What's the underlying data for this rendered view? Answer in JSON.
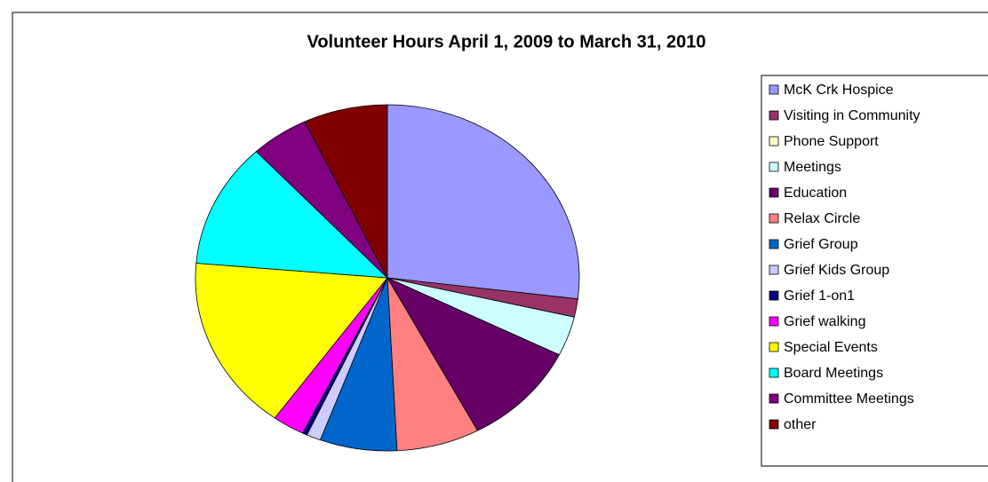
{
  "chart_data": {
    "type": "pie",
    "title": "Volunteer Hours April 1, 2009 to March 31, 2010",
    "categories": [
      "McK Crk Hospice",
      "Visiting in Community",
      "Phone Support",
      "Meetings",
      "Education",
      "Relax Circle",
      "Grief Group",
      "Grief Kids Group",
      "Grief 1-on1",
      "Grief walking",
      "Special  Events",
      "Board Meetings",
      "Committee Meetings",
      "other"
    ],
    "values": [
      27,
      1.7,
      0,
      3.7,
      9.9,
      7,
      6.5,
      1.2,
      0.4,
      2.7,
      16.4,
      11.7,
      4.9,
      7.1
    ],
    "colors": [
      "#9999ff",
      "#993366",
      "#ffffcc",
      "#ccffff",
      "#660066",
      "#ff8080",
      "#0066cc",
      "#ccccff",
      "#000080",
      "#ff00ff",
      "#ffff00",
      "#00ffff",
      "#800080",
      "#800000"
    ],
    "legend": "right"
  }
}
